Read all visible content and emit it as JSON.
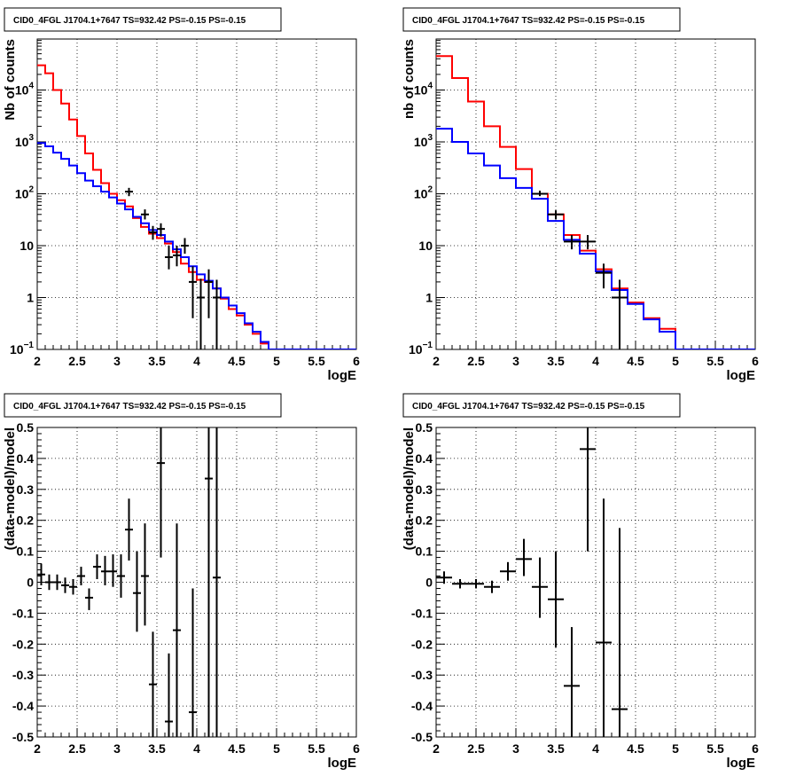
{
  "chart_data": [
    {
      "type": "step",
      "title": "CID0_4FGL J1704.1+7647 TS=932.42 PS=-0.15 PS=-0.15",
      "xlabel": "logE",
      "ylabel": "Nb of counts",
      "xlim": [
        2,
        6
      ],
      "ylim": [
        0.1,
        90000
      ],
      "yscale": "log",
      "grid": true,
      "x_ticks": [
        "2",
        "2.5",
        "3",
        "3.5",
        "4",
        "4.5",
        "5",
        "5.5",
        "6"
      ],
      "y_ticks": [
        "10^-1",
        "1",
        "10",
        "10^2",
        "10^3",
        "10^4"
      ],
      "bin_width": 0.1,
      "series": [
        {
          "color": "#ff0000",
          "bin_edges": [
            2.0,
            2.1,
            2.2,
            2.3,
            2.4,
            2.5,
            2.6,
            2.7,
            2.8,
            2.9,
            3.0,
            3.1,
            3.2,
            3.3,
            3.4,
            3.5,
            3.6,
            3.7,
            3.8,
            3.9,
            4.0,
            4.1,
            4.2,
            4.3,
            4.4,
            4.5,
            4.6,
            4.7,
            4.8,
            4.9,
            5.0,
            5.1,
            5.2,
            5.3,
            5.4,
            5.5,
            5.6,
            5.7,
            5.8,
            5.9,
            6.0
          ],
          "values": [
            30000,
            21000,
            10000,
            5500,
            2700,
            1300,
            600,
            290,
            160,
            100,
            75,
            57,
            34,
            23,
            17,
            14,
            11,
            7.5,
            4.5,
            3.1,
            2.2,
            2.0,
            1.5,
            0.95,
            0.6,
            0.45,
            0.3,
            0.2,
            0.13,
            0.1,
            0.1,
            0.1,
            0.1,
            0.1,
            0.1,
            0.1,
            0.1,
            0.1,
            0.1,
            0.1
          ]
        },
        {
          "color": "#0000ff",
          "bin_edges": [
            2.0,
            2.1,
            2.2,
            2.3,
            2.4,
            2.5,
            2.6,
            2.7,
            2.8,
            2.9,
            3.0,
            3.1,
            3.2,
            3.3,
            3.4,
            3.5,
            3.6,
            3.7,
            3.8,
            3.9,
            4.0,
            4.1,
            4.2,
            4.3,
            4.4,
            4.5,
            4.6,
            4.7,
            4.8,
            4.9,
            5.0,
            5.1,
            5.2,
            5.3,
            5.4,
            5.5,
            5.6,
            5.7,
            5.8,
            5.9,
            6.0
          ],
          "values": [
            950,
            820,
            620,
            470,
            350,
            250,
            180,
            140,
            110,
            85,
            65,
            50,
            36,
            27,
            20,
            16,
            12,
            8.5,
            6,
            4,
            2.8,
            2.1,
            1.5,
            1.0,
            0.7,
            0.5,
            0.32,
            0.22,
            0.14,
            0.1,
            0.1,
            0.1,
            0.1,
            0.1,
            0.1,
            0.1,
            0.1,
            0.1,
            0.1,
            0.1
          ]
        }
      ],
      "data_points": [
        {
          "x": 3.15,
          "y": 110,
          "ylow": 90,
          "yhigh": 130
        },
        {
          "x": 3.35,
          "y": 40,
          "ylow": 32,
          "yhigh": 50
        },
        {
          "x": 3.45,
          "y": 18,
          "ylow": 13,
          "yhigh": 24
        },
        {
          "x": 3.55,
          "y": 21,
          "ylow": 15,
          "yhigh": 27
        },
        {
          "x": 3.65,
          "y": 6,
          "ylow": 3.5,
          "yhigh": 10
        },
        {
          "x": 3.75,
          "y": 6.5,
          "ylow": 4,
          "yhigh": 10
        },
        {
          "x": 3.85,
          "y": 10,
          "ylow": 7,
          "yhigh": 14
        },
        {
          "x": 3.95,
          "y": 2,
          "ylow": 0.4,
          "yhigh": 4
        },
        {
          "x": 4.05,
          "y": 1,
          "ylow": 0.1,
          "yhigh": 2.3
        },
        {
          "x": 4.15,
          "y": 2,
          "ylow": 0.4,
          "yhigh": 3.5
        },
        {
          "x": 4.25,
          "y": 1,
          "ylow": 0.1,
          "yhigh": 2.2
        }
      ]
    },
    {
      "type": "step",
      "title": "CID0_4FGL J1704.1+7647 TS=932.42 PS=-0.15 PS=-0.15",
      "xlabel": "logE",
      "ylabel": "nb of counts",
      "xlim": [
        2,
        6
      ],
      "ylim": [
        0.1,
        90000
      ],
      "yscale": "log",
      "grid": true,
      "x_ticks": [
        "2",
        "2.5",
        "3",
        "3.5",
        "4",
        "4.5",
        "5",
        "5.5",
        "6"
      ],
      "y_ticks": [
        "10^-1",
        "1",
        "10",
        "10^2",
        "10^3",
        "10^4"
      ],
      "bin_width": 0.2,
      "series": [
        {
          "color": "#ff0000",
          "bin_edges": [
            2.0,
            2.2,
            2.4,
            2.6,
            2.8,
            3.0,
            3.2,
            3.4,
            3.6,
            3.8,
            4.0,
            4.2,
            4.4,
            4.6,
            4.8,
            5.0,
            5.2,
            5.4,
            5.6,
            5.8,
            6.0
          ],
          "values": [
            45000,
            17000,
            6000,
            2000,
            800,
            300,
            100,
            40,
            16,
            8,
            3.5,
            1.5,
            0.8,
            0.4,
            0.25,
            0.1,
            0.1,
            0.1,
            0.1,
            0.1
          ]
        },
        {
          "color": "#0000ff",
          "bin_edges": [
            2.0,
            2.2,
            2.4,
            2.6,
            2.8,
            3.0,
            3.2,
            3.4,
            3.6,
            3.8,
            4.0,
            4.2,
            4.4,
            4.6,
            4.8,
            5.0,
            5.2,
            5.4,
            5.6,
            5.8,
            6.0
          ],
          "values": [
            1800,
            1000,
            600,
            350,
            200,
            130,
            80,
            30,
            13,
            7,
            3.2,
            1.4,
            0.75,
            0.38,
            0.22,
            0.1,
            0.1,
            0.1,
            0.1,
            0.1
          ]
        }
      ],
      "data_points": [
        {
          "x": 3.3,
          "y": 100,
          "ylow": 90,
          "yhigh": 115
        },
        {
          "x": 3.5,
          "y": 40,
          "ylow": 32,
          "yhigh": 48
        },
        {
          "x": 3.7,
          "y": 12,
          "ylow": 8.5,
          "yhigh": 16
        },
        {
          "x": 3.9,
          "y": 12,
          "ylow": 8.5,
          "yhigh": 16
        },
        {
          "x": 4.1,
          "y": 3,
          "ylow": 1.5,
          "yhigh": 4.5
        },
        {
          "x": 4.3,
          "y": 1,
          "ylow": 0.1,
          "yhigh": 2.2
        }
      ]
    },
    {
      "type": "errorbar",
      "title": "CID0_4FGL J1704.1+7647 TS=932.42 PS=-0.15 PS=-0.15",
      "xlabel": "logE",
      "ylabel": "(data-model)/model",
      "xlim": [
        2,
        6
      ],
      "ylim": [
        -0.5,
        0.5
      ],
      "grid": true,
      "x_ticks": [
        "2",
        "2.5",
        "3",
        "3.5",
        "4",
        "4.5",
        "5",
        "5.5",
        "6"
      ],
      "y_ticks": [
        "-0.5",
        "-0.4",
        "-0.3",
        "-0.2",
        "-0.1",
        "0",
        "0.1",
        "0.2",
        "0.3",
        "0.4",
        "0.5"
      ],
      "bin_width": 0.1,
      "data_points": [
        {
          "x": 2.05,
          "y": 0.025,
          "ylow": -0.01,
          "yhigh": 0.06
        },
        {
          "x": 2.15,
          "y": 0.0,
          "ylow": -0.025,
          "yhigh": 0.025
        },
        {
          "x": 2.25,
          "y": 0.0,
          "ylow": -0.025,
          "yhigh": 0.025
        },
        {
          "x": 2.35,
          "y": -0.01,
          "ylow": -0.035,
          "yhigh": 0.015
        },
        {
          "x": 2.45,
          "y": -0.015,
          "ylow": -0.04,
          "yhigh": 0.01
        },
        {
          "x": 2.55,
          "y": 0.02,
          "ylow": -0.01,
          "yhigh": 0.05
        },
        {
          "x": 2.65,
          "y": -0.05,
          "ylow": -0.09,
          "yhigh": -0.02
        },
        {
          "x": 2.75,
          "y": 0.05,
          "ylow": 0.01,
          "yhigh": 0.09
        },
        {
          "x": 2.85,
          "y": 0.035,
          "ylow": -0.01,
          "yhigh": 0.085
        },
        {
          "x": 2.95,
          "y": 0.035,
          "ylow": -0.015,
          "yhigh": 0.09
        },
        {
          "x": 3.05,
          "y": 0.02,
          "ylow": -0.05,
          "yhigh": 0.09
        },
        {
          "x": 3.15,
          "y": 0.17,
          "ylow": 0.07,
          "yhigh": 0.27
        },
        {
          "x": 3.25,
          "y": -0.035,
          "ylow": -0.16,
          "yhigh": 0.1
        },
        {
          "x": 3.35,
          "y": 0.02,
          "ylow": -0.14,
          "yhigh": 0.19
        },
        {
          "x": 3.45,
          "y": -0.33,
          "ylow": -0.5,
          "yhigh": -0.16
        },
        {
          "x": 3.55,
          "y": 0.385,
          "ylow": 0.08,
          "yhigh": 0.5
        },
        {
          "x": 3.65,
          "y": -0.45,
          "ylow": -0.5,
          "yhigh": -0.23
        },
        {
          "x": 3.75,
          "y": -0.155,
          "ylow": -0.5,
          "yhigh": 0.19
        },
        {
          "x": 3.95,
          "y": -0.42,
          "ylow": -0.5,
          "yhigh": -0.02
        },
        {
          "x": 4.15,
          "y": 0.335,
          "ylow": -0.5,
          "yhigh": 0.5
        },
        {
          "x": 4.25,
          "y": 0.015,
          "ylow": -0.5,
          "yhigh": 0.5
        }
      ]
    },
    {
      "type": "errorbar",
      "title": "CID0_4FGL J1704.1+7647 TS=932.42 PS=-0.15 PS=-0.15",
      "xlabel": "logE",
      "ylabel": "(data-model)/model",
      "xlim": [
        2,
        6
      ],
      "ylim": [
        -0.5,
        0.5
      ],
      "grid": true,
      "x_ticks": [
        "2",
        "2.5",
        "3",
        "3.5",
        "4",
        "4.5",
        "5",
        "5.5",
        "6"
      ],
      "y_ticks": [
        "-0.5",
        "-0.4",
        "-0.3",
        "-0.2",
        "-0.1",
        "0",
        "0.1",
        "0.2",
        "0.3",
        "0.4",
        "0.5"
      ],
      "bin_width": 0.2,
      "data_points": [
        {
          "x": 2.1,
          "y": 0.015,
          "ylow": -0.005,
          "yhigh": 0.035
        },
        {
          "x": 2.3,
          "y": -0.005,
          "ylow": -0.02,
          "yhigh": 0.01
        },
        {
          "x": 2.5,
          "y": -0.005,
          "ylow": -0.02,
          "yhigh": 0.01
        },
        {
          "x": 2.7,
          "y": -0.015,
          "ylow": -0.035,
          "yhigh": 0.005
        },
        {
          "x": 2.9,
          "y": 0.035,
          "ylow": 0.005,
          "yhigh": 0.065
        },
        {
          "x": 3.1,
          "y": 0.075,
          "ylow": 0.02,
          "yhigh": 0.14
        },
        {
          "x": 3.3,
          "y": -0.015,
          "ylow": -0.115,
          "yhigh": 0.08
        },
        {
          "x": 3.5,
          "y": -0.055,
          "ylow": -0.21,
          "yhigh": 0.1
        },
        {
          "x": 3.7,
          "y": -0.335,
          "ylow": -0.5,
          "yhigh": -0.145
        },
        {
          "x": 3.9,
          "y": 0.43,
          "ylow": 0.1,
          "yhigh": 0.5
        },
        {
          "x": 4.1,
          "y": -0.195,
          "ylow": -0.5,
          "yhigh": 0.27
        },
        {
          "x": 4.3,
          "y": -0.41,
          "ylow": -0.5,
          "yhigh": 0.175
        }
      ]
    }
  ]
}
